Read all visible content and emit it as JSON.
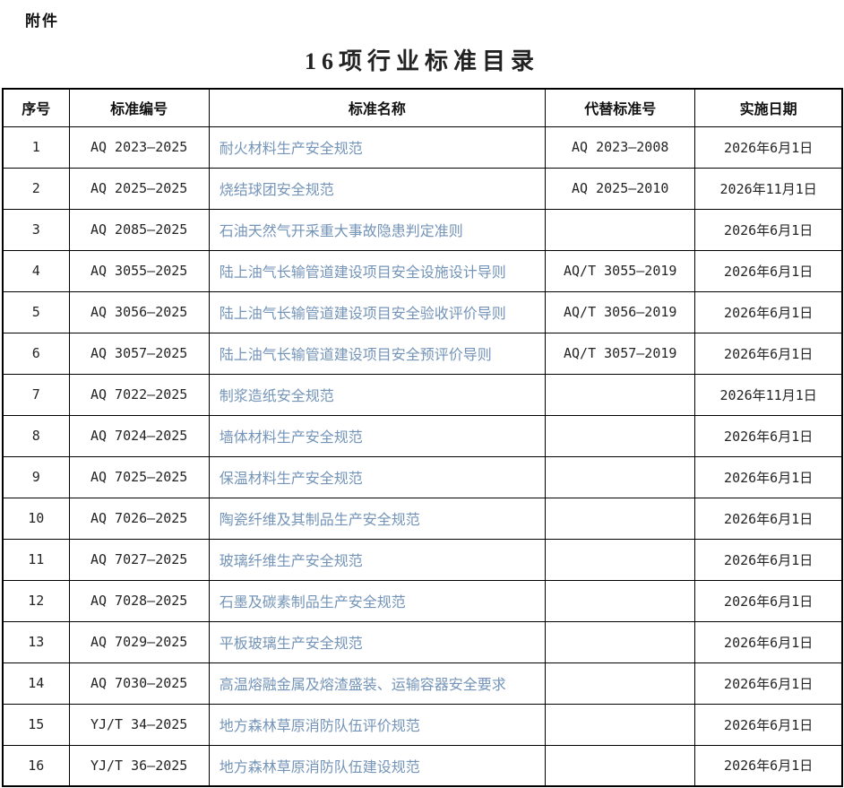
{
  "page": {
    "attachment_label": "附件",
    "title": "16项行业标准目录"
  },
  "colors": {
    "link_blue": "#7494b8",
    "border": "#000000",
    "text": "#242424"
  },
  "table": {
    "headers": [
      "序号",
      "标准编号",
      "标准名称",
      "代替标准号",
      "实施日期"
    ],
    "rows": [
      {
        "seq": "1",
        "code": "AQ 2023—2025",
        "name": "耐火材料生产安全规范",
        "replaces": "AQ 2023—2008",
        "date": "2026年6月1日"
      },
      {
        "seq": "2",
        "code": "AQ 2025—2025",
        "name": "烧结球团安全规范",
        "replaces": "AQ 2025—2010",
        "date": "2026年11月1日"
      },
      {
        "seq": "3",
        "code": "AQ 2085—2025",
        "name": "石油天然气开采重大事故隐患判定准则",
        "replaces": "",
        "date": "2026年6月1日"
      },
      {
        "seq": "4",
        "code": "AQ 3055—2025",
        "name": "陆上油气长输管道建设项目安全设施设计导则",
        "replaces": "AQ/T 3055—2019",
        "date": "2026年6月1日"
      },
      {
        "seq": "5",
        "code": "AQ 3056—2025",
        "name": "陆上油气长输管道建设项目安全验收评价导则",
        "replaces": "AQ/T 3056—2019",
        "date": "2026年6月1日"
      },
      {
        "seq": "6",
        "code": "AQ 3057—2025",
        "name": "陆上油气长输管道建设项目安全预评价导则",
        "replaces": "AQ/T 3057—2019",
        "date": "2026年6月1日"
      },
      {
        "seq": "7",
        "code": "AQ 7022—2025",
        "name": "制浆造纸安全规范",
        "replaces": "",
        "date": "2026年11月1日"
      },
      {
        "seq": "8",
        "code": "AQ 7024—2025",
        "name": "墙体材料生产安全规范",
        "replaces": "",
        "date": "2026年6月1日"
      },
      {
        "seq": "9",
        "code": "AQ 7025—2025",
        "name": "保温材料生产安全规范",
        "replaces": "",
        "date": "2026年6月1日"
      },
      {
        "seq": "10",
        "code": "AQ 7026—2025",
        "name": "陶瓷纤维及其制品生产安全规范",
        "replaces": "",
        "date": "2026年6月1日"
      },
      {
        "seq": "11",
        "code": "AQ 7027—2025",
        "name": "玻璃纤维生产安全规范",
        "replaces": "",
        "date": "2026年6月1日"
      },
      {
        "seq": "12",
        "code": "AQ 7028—2025",
        "name": "石墨及碳素制品生产安全规范",
        "replaces": "",
        "date": "2026年6月1日"
      },
      {
        "seq": "13",
        "code": "AQ 7029—2025",
        "name": "平板玻璃生产安全规范",
        "replaces": "",
        "date": "2026年6月1日"
      },
      {
        "seq": "14",
        "code": "AQ 7030—2025",
        "name": "高温熔融金属及熔渣盛装、运输容器安全要求",
        "replaces": "",
        "date": "2026年6月1日"
      },
      {
        "seq": "15",
        "code": "YJ/T 34—2025",
        "name": "地方森林草原消防队伍评价规范",
        "replaces": "",
        "date": "2026年6月1日"
      },
      {
        "seq": "16",
        "code": "YJ/T 36—2025",
        "name": "地方森林草原消防队伍建设规范",
        "replaces": "",
        "date": "2026年6月1日"
      }
    ]
  }
}
